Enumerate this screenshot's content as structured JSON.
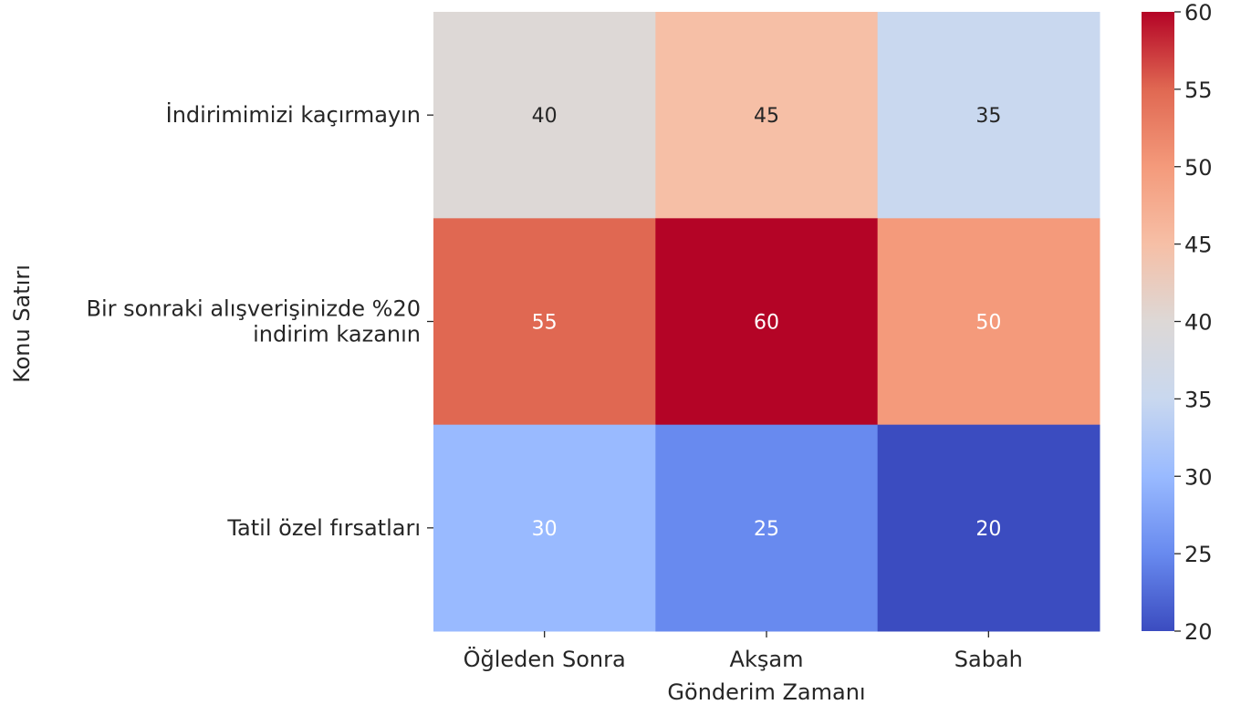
{
  "chart_data": {
    "type": "heatmap",
    "title": "",
    "xlabel": "Gönderim Zamanı",
    "ylabel": "Konu Satırı",
    "columns": [
      "Öğleden Sonra",
      "Akşam",
      "Sabah"
    ],
    "rows": [
      [
        "İndirimimizi kaçırmayın"
      ],
      [
        "Bir sonraki alışverişinizde %20",
        "indirim kazanın"
      ],
      [
        "Tatil özel fırsatları"
      ]
    ],
    "values": [
      [
        40,
        45,
        35
      ],
      [
        55,
        60,
        50
      ],
      [
        30,
        25,
        20
      ]
    ],
    "colorbar": {
      "min": 20,
      "max": 60,
      "ticks": [
        20,
        25,
        30,
        35,
        40,
        45,
        50,
        55,
        60
      ],
      "colormap": "coolwarm",
      "colors": [
        "#3b4cc0",
        "#688aef",
        "#99baff",
        "#c9d8ef",
        "#ddd8d6",
        "#f6bfa6",
        "#f49a7b",
        "#e06852",
        "#b40426"
      ]
    },
    "cell_text_colors": {
      "dark": "#262626",
      "light": "#ffffff"
    }
  }
}
